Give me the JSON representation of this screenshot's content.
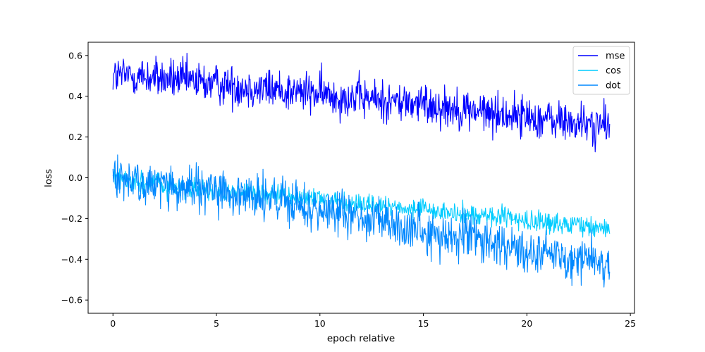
{
  "chart_data": {
    "type": "line",
    "title": "",
    "xlabel": "epoch relative",
    "ylabel": "loss",
    "xlim": [
      -1.2,
      25.2
    ],
    "ylim": [
      -0.665,
      0.665
    ],
    "xticks": [
      0,
      5,
      10,
      15,
      20,
      25
    ],
    "yticks": [
      -0.6,
      -0.4,
      -0.2,
      0.0,
      0.2,
      0.4,
      0.6
    ],
    "xtick_labels": [
      "0",
      "5",
      "10",
      "15",
      "20",
      "25"
    ],
    "ytick_labels": [
      "−0.6",
      "−0.4",
      "−0.2",
      "0.0",
      "0.2",
      "0.4",
      "0.6"
    ],
    "grid": false,
    "legend_position": "top-right",
    "x_range": [
      0,
      24
    ],
    "series": [
      {
        "name": "mse",
        "color": "#0000ff",
        "trend_x": [
          0,
          1,
          2,
          4,
          6,
          8,
          10,
          12,
          14,
          16,
          18,
          20,
          22,
          24
        ],
        "trend_y": [
          0.5,
          0.5,
          0.49,
          0.47,
          0.45,
          0.43,
          0.41,
          0.39,
          0.37,
          0.35,
          0.32,
          0.3,
          0.27,
          0.25
        ],
        "noise_amplitude": 0.05
      },
      {
        "name": "cos",
        "color": "#00ccff",
        "trend_x": [
          0,
          2,
          4,
          6,
          8,
          10,
          12,
          14,
          16,
          18,
          20,
          22,
          24
        ],
        "trend_y": [
          0.0,
          -0.03,
          -0.06,
          -0.08,
          -0.09,
          -0.11,
          -0.13,
          -0.15,
          -0.17,
          -0.19,
          -0.21,
          -0.23,
          -0.25
        ],
        "noise_amplitude": 0.025
      },
      {
        "name": "dot",
        "color": "#0088ff",
        "trend_x": [
          0,
          2,
          4,
          6,
          8,
          10,
          12,
          14,
          16,
          18,
          20,
          22,
          24
        ],
        "trend_y": [
          0.0,
          -0.03,
          -0.06,
          -0.08,
          -0.12,
          -0.16,
          -0.2,
          -0.24,
          -0.28,
          -0.31,
          -0.35,
          -0.39,
          -0.43
        ],
        "noise_amplitude": 0.055
      }
    ]
  }
}
